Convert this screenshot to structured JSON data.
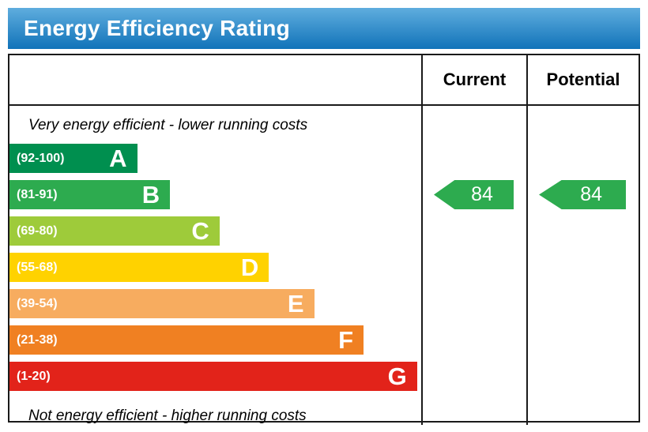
{
  "header": {
    "title": "Energy Efficiency Rating",
    "bg_from": "#5fadde",
    "bg_to": "#1173b9",
    "text_color": "#ffffff"
  },
  "columns": {
    "current": "Current",
    "potential": "Potential"
  },
  "notes": {
    "top": "Very energy efficient - lower running costs",
    "bottom": "Not energy efficient - higher running costs"
  },
  "bands": [
    {
      "letter": "A",
      "range": "(92-100)",
      "color": "#008f4f",
      "width_pct": 31
    },
    {
      "letter": "B",
      "range": "(81-91)",
      "color": "#2dab4f",
      "width_pct": 39
    },
    {
      "letter": "C",
      "range": "(69-80)",
      "color": "#9ecb3a",
      "width_pct": 51
    },
    {
      "letter": "D",
      "range": "(55-68)",
      "color": "#ffd200",
      "width_pct": 63
    },
    {
      "letter": "E",
      "range": "(39-54)",
      "color": "#f7ac5f",
      "width_pct": 74
    },
    {
      "letter": "F",
      "range": "(21-38)",
      "color": "#f08022",
      "width_pct": 86
    },
    {
      "letter": "G",
      "range": "(1-20)",
      "color": "#e2231a",
      "width_pct": 99
    }
  ],
  "ratings": {
    "current": 84,
    "potential": 84,
    "band": "B",
    "arrow_color": "#2dab4f"
  },
  "chart_data": {
    "type": "bar",
    "title": "Energy Efficiency Rating",
    "categories": [
      "A (92-100)",
      "B (81-91)",
      "C (69-80)",
      "D (55-68)",
      "E (39-54)",
      "F (21-38)",
      "G (1-20)"
    ],
    "values": [
      31,
      39,
      51,
      63,
      74,
      86,
      99
    ],
    "band_colors": [
      "#008f4f",
      "#2dab4f",
      "#9ecb3a",
      "#ffd200",
      "#f7ac5f",
      "#f08022",
      "#e2231a"
    ],
    "series": [
      {
        "name": "Current",
        "value": 84,
        "band": "B"
      },
      {
        "name": "Potential",
        "value": 84,
        "band": "B"
      }
    ],
    "annotations": [
      "Very energy efficient - lower running costs",
      "Not energy efficient - higher running costs"
    ],
    "xlabel": "",
    "ylabel": "",
    "legend_position": "none",
    "grid": false
  }
}
